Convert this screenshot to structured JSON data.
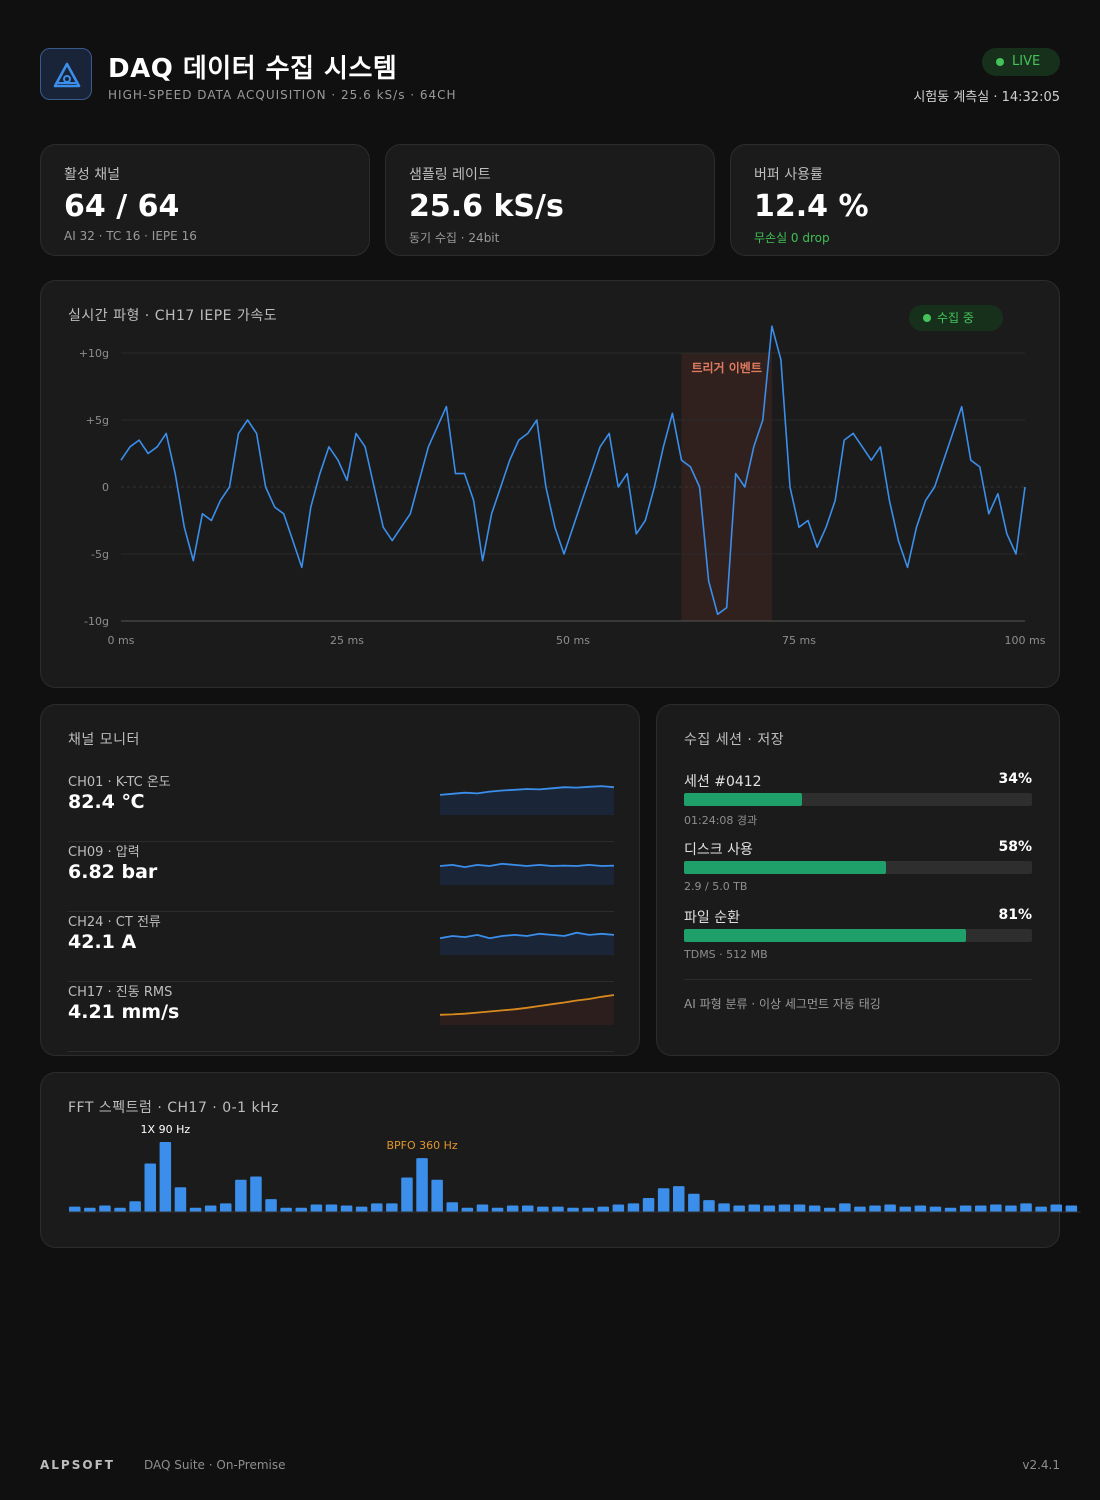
{
  "header": {
    "title": "DAQ 데이터 수집 시스템",
    "subtitle": "HIGH-SPEED DATA ACQUISITION · 25.6 kS/s · 64CH",
    "live_label": "LIVE",
    "location": "시험동 계측실 · 14:32:05",
    "logo_icon": "triangle-signal-icon"
  },
  "stats": [
    {
      "label": "활성 채널",
      "value": "64 / 64",
      "sub": "AI 32 · TC 16 · IEPE 16"
    },
    {
      "label": "샘플링 레이트",
      "value": "25.6 kS/s",
      "sub": "동기 수집 · 24bit"
    },
    {
      "label": "버퍼 사용률",
      "value": "12.4 %",
      "sub": "무손실 0 drop"
    }
  ],
  "waveform": {
    "title": "실시간 파형 · CH17 IEPE 가속도",
    "status": "수집 중",
    "trigger_label": "트리거 이벤트",
    "colors": {
      "line": "#3b8eea",
      "trigger": "#e07a5f"
    }
  },
  "chart_data": [
    {
      "type": "line",
      "title": "실시간 파형 · CH17 IEPE 가속도",
      "xlabel": "",
      "ylabel": "",
      "xlim": [
        0,
        100
      ],
      "ylim": [
        -10,
        10
      ],
      "x_ticks": [
        "0 ms",
        "25 ms",
        "50 ms",
        "75 ms",
        "100 ms"
      ],
      "y_ticks": [
        "+10g",
        "+5g",
        "0",
        "-5g",
        "-10g"
      ],
      "grid": true,
      "trigger_window_ms": [
        62,
        72
      ],
      "x": [
        0,
        1,
        2,
        3,
        4,
        5,
        6,
        7,
        8,
        9,
        10,
        11,
        12,
        13,
        14,
        15,
        16,
        17,
        18,
        19,
        20,
        21,
        22,
        23,
        24,
        25,
        26,
        27,
        28,
        29,
        30,
        31,
        32,
        33,
        34,
        35,
        36,
        37,
        38,
        39,
        40,
        41,
        42,
        43,
        44,
        45,
        46,
        47,
        48,
        49,
        50,
        51,
        52,
        53,
        54,
        55,
        56,
        57,
        58,
        59,
        60,
        61,
        62,
        63,
        64,
        65,
        66,
        67,
        68,
        69,
        70,
        71,
        72,
        73,
        74,
        75,
        76,
        77,
        78,
        79,
        80,
        81,
        82,
        83,
        84,
        85,
        86,
        87,
        88,
        89,
        90,
        91,
        92,
        93,
        94,
        95,
        96,
        97,
        98,
        99,
        100
      ],
      "y": [
        2,
        3,
        3.5,
        2.5,
        3,
        4,
        1,
        -3,
        -5.5,
        -2,
        -2.5,
        -1,
        0,
        4,
        5,
        4,
        0,
        -1.5,
        -2,
        -4,
        -6,
        -1.5,
        1,
        3,
        2,
        0.5,
        4,
        3,
        0,
        -3,
        -4,
        -3,
        -2,
        0.5,
        3,
        4.5,
        6,
        1,
        1,
        -1,
        -5.5,
        -2,
        0,
        2,
        3.5,
        4,
        5,
        0,
        -3,
        -5,
        -3,
        -1,
        1,
        3,
        4,
        0,
        1,
        -3.5,
        -2.5,
        0,
        3,
        5.5,
        2,
        1.5,
        0,
        -7,
        -9.5,
        -9,
        1,
        0,
        3,
        5,
        12,
        9.5,
        0,
        -3,
        -2.5,
        -4.5,
        -3,
        -1,
        3.5,
        4,
        3,
        2,
        3,
        -1,
        -4,
        -6,
        -3,
        -1,
        0,
        2,
        4,
        6,
        2,
        1.5,
        -2,
        -0.5,
        -3.5,
        -5,
        0
      ]
    },
    {
      "type": "bar",
      "title": "FFT 스펙트럼 · CH17 · 0-1 kHz",
      "annotations": [
        {
          "label": "1X 90 Hz",
          "bin": 6
        },
        {
          "label": "BPFO 360 Hz",
          "bin": 23
        }
      ],
      "values": [
        0.5,
        0.4,
        0.6,
        0.4,
        1,
        4.5,
        6.5,
        2.3,
        0.4,
        0.6,
        0.8,
        3,
        3.3,
        1.2,
        0.4,
        0.4,
        0.7,
        0.7,
        0.6,
        0.5,
        0.8,
        0.8,
        3.2,
        5,
        3,
        0.9,
        0.4,
        0.7,
        0.4,
        0.6,
        0.6,
        0.5,
        0.5,
        0.4,
        0.4,
        0.5,
        0.7,
        0.8,
        1.3,
        2.2,
        2.4,
        1.7,
        1.1,
        0.8,
        0.6,
        0.7,
        0.6,
        0.7,
        0.7,
        0.6,
        0.4,
        0.8,
        0.5,
        0.6,
        0.7,
        0.5,
        0.6,
        0.5,
        0.4,
        0.6,
        0.6,
        0.7,
        0.6,
        0.8,
        0.5,
        0.7,
        0.6
      ]
    }
  ],
  "channels": {
    "title": "채널 모니터",
    "items": [
      {
        "name": "CH01 · K-TC 온도",
        "value": "82.4 ℃",
        "color": "#3b8eea",
        "fill": "#1a2638",
        "trend": [
          0.55,
          0.6,
          0.65,
          0.62,
          0.7,
          0.75,
          0.78,
          0.82,
          0.8,
          0.85,
          0.9,
          0.88,
          0.92,
          0.95,
          0.9
        ]
      },
      {
        "name": "CH09 · 압력",
        "value": "6.82 bar",
        "color": "#3b8eea",
        "fill": "#1a2638",
        "trend": [
          0.5,
          0.55,
          0.45,
          0.55,
          0.5,
          0.6,
          0.55,
          0.5,
          0.55,
          0.5,
          0.52,
          0.5,
          0.55,
          0.5,
          0.52
        ]
      },
      {
        "name": "CH24 · CT 전류",
        "value": "42.1 A",
        "color": "#3b8eea",
        "fill": "#1a2638",
        "trend": [
          0.4,
          0.5,
          0.45,
          0.55,
          0.4,
          0.5,
          0.55,
          0.5,
          0.6,
          0.55,
          0.5,
          0.65,
          0.55,
          0.6,
          0.55
        ]
      },
      {
        "name": "CH17 · 진동 RMS",
        "value": "4.21 mm/s",
        "color": "#d98a1e",
        "fill": "#2b1e1c",
        "trend": [
          0.1,
          0.12,
          0.15,
          0.2,
          0.25,
          0.3,
          0.35,
          0.42,
          0.5,
          0.58,
          0.66,
          0.75,
          0.82,
          0.92,
          1
        ]
      }
    ]
  },
  "session": {
    "title": "수집 세션 · 저장",
    "items": [
      {
        "label": "세션 #0412",
        "pct_text": "34%",
        "fraction": 0.34,
        "sub": "01:24:08 경과"
      },
      {
        "label": "디스크 사용",
        "pct_text": "58%",
        "fraction": 0.58,
        "sub": "2.9 / 5.0 TB"
      },
      {
        "label": "파일 순환",
        "pct_text": "81%",
        "fraction": 0.81,
        "sub": "TDMS · 512 MB"
      }
    ],
    "note": "AI 파형 분류 · 이상 세그먼트 자동 태깅",
    "colors": {
      "fill": "#1fa06a",
      "track": "#2e2e2e"
    }
  },
  "fft": {
    "title": "FFT 스펙트럼 · CH17 · 0-1 kHz",
    "colors": {
      "bar": "#3b8eea",
      "annotation1": "#ffffff",
      "annotation2": "#e0962a"
    }
  },
  "footer": {
    "brand": "ALPSOFT",
    "suite": "DAQ Suite · On-Premise",
    "version": "v2.4.1"
  }
}
